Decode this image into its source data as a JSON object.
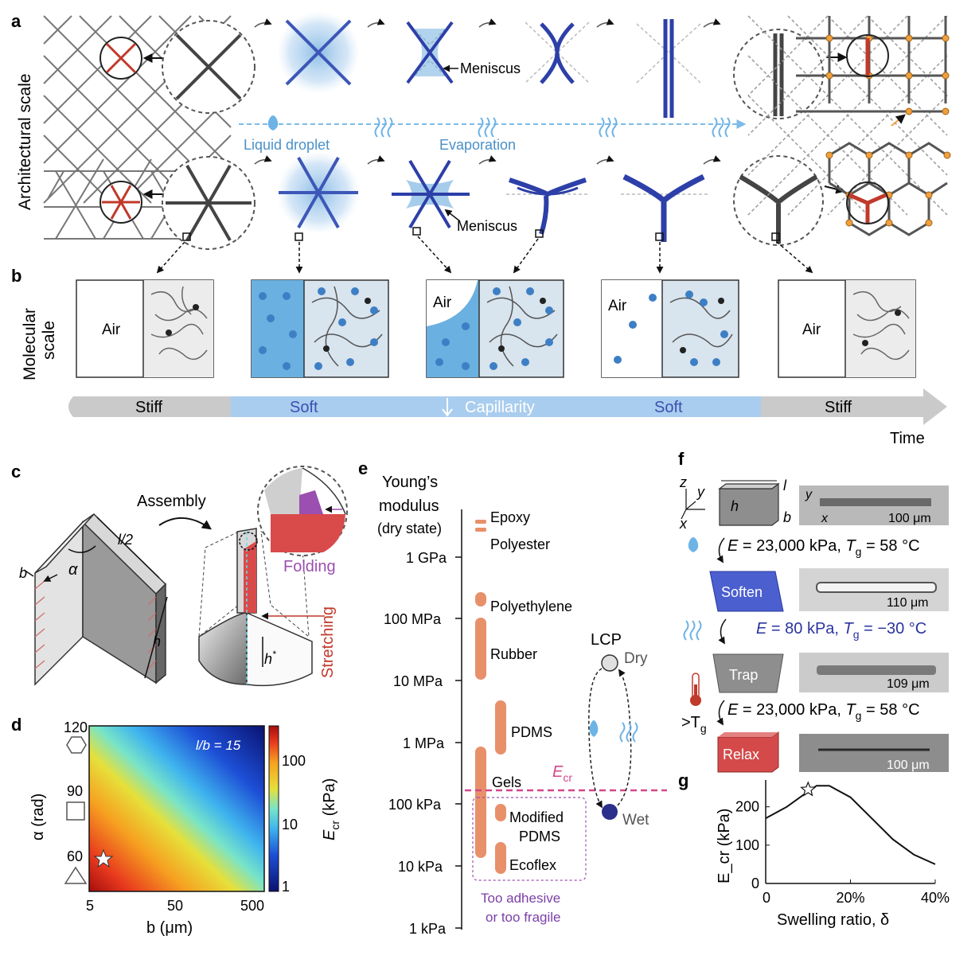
{
  "panels": {
    "a": "a",
    "b": "b",
    "c": "c",
    "d": "d",
    "e": "e",
    "f": "f",
    "g": "g"
  },
  "panel_a": {
    "side_label": "Architectural scale",
    "meniscus_top": "Meniscus",
    "meniscus_bottom": "Meniscus",
    "liquid_droplet": "Liquid droplet",
    "evaporation": "Evaporation"
  },
  "panel_b": {
    "side_label_1": "Molecular",
    "side_label_2": "scale",
    "air": "Air"
  },
  "timeline": {
    "stiff_left": "Stiff",
    "soft_left": "Soft",
    "capillarity": "Capillarity",
    "soft_right": "Soft",
    "stiff_right": "Stiff",
    "time": "Time"
  },
  "panel_c": {
    "assembly": "Assembly",
    "l2": "l/2",
    "b": "b",
    "alpha": "α",
    "h": "h",
    "hstar": "h",
    "hstar_sup": "*",
    "folding": "Folding",
    "stretching": "Stretching"
  },
  "panel_d": {
    "title": "l/b = 15",
    "ylabel": "α (rad)",
    "yticks": [
      "120",
      "90",
      "60"
    ],
    "xlabel": "b (μm)",
    "xticks": [
      "5",
      "50",
      "500"
    ],
    "cbar_label": "E",
    "cbar_sub": "cr",
    "cbar_unit": " (kPa)",
    "cbar_ticks": [
      "100",
      "10",
      "1"
    ]
  },
  "panel_e": {
    "title_1": "Young’s",
    "title_2": "modulus",
    "title_3": "(dry state)",
    "ticks": [
      "1 GPa",
      "100 MPa",
      "10 MPa",
      "1 MPa",
      "100 kPa",
      "10 kPa",
      "1 kPa"
    ],
    "materials": [
      "Epoxy",
      "Polyester",
      "Polyethylene",
      "Rubber",
      "PDMS",
      "Gels",
      "Modified",
      "PDMS",
      "Ecoflex"
    ],
    "ecr": "E",
    "ecr_sub": "cr",
    "lcp": "LCP",
    "dry": "Dry",
    "wet": "Wet",
    "too_1": "Too adhesive",
    "too_2": "or too fragile"
  },
  "panel_f": {
    "axes": {
      "z": "z",
      "y": "y",
      "x": "x"
    },
    "dims": {
      "l": "l",
      "h": "h",
      "b": "b"
    },
    "scale_bars": [
      "100 μm",
      "110 μm",
      "109 μm",
      "100 μm"
    ],
    "states": [
      "Soften",
      "Trap",
      "Relax"
    ],
    "eq1_E": "E",
    "eq1_val": " = 23,000 kPa, ",
    "eq1_T": "T",
    "eq1_Tsub": "g",
    "eq1_Tval": " = 58 °C",
    "eq2_E": "E",
    "eq2_val": " = 80 kPa, ",
    "eq2_T": "T",
    "eq2_Tsub": "g",
    "eq2_Tval": " = −30 °C",
    "eq3_E": "E",
    "eq3_val": " = 23,000 kPa, ",
    "eq3_T": "T",
    "eq3_Tsub": "g",
    "eq3_Tval": " = 58 °C",
    "gt_tg": ">T",
    "gt_sub": "g"
  },
  "chart_data": {
    "type": "line",
    "x": [
      0,
      5,
      10,
      12,
      15,
      20,
      25,
      30,
      35,
      40
    ],
    "values": [
      170,
      200,
      240,
      255,
      255,
      225,
      170,
      115,
      75,
      50
    ],
    "xlabel": "Swelling ratio, δ",
    "ylabel": "E_cr (kPa)",
    "xticks": [
      "0",
      "20%",
      "40%"
    ],
    "yticks": [
      "0",
      "100",
      "200"
    ],
    "xlim": [
      0,
      40
    ],
    "ylim": [
      0,
      270
    ],
    "marker_x": 10,
    "marker_y": 245
  }
}
